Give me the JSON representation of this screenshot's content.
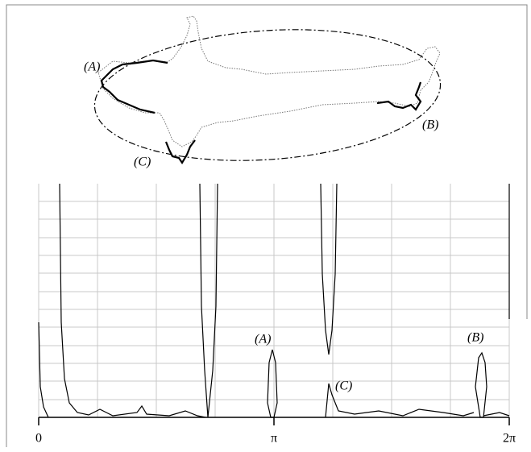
{
  "contour_labels": [
    "(A)",
    "(B)",
    "(C)"
  ],
  "plot_labels": [
    "(A)",
    "(C)",
    "(B)"
  ],
  "x_tick_labels": [
    "0",
    "π",
    "2π"
  ]
}
